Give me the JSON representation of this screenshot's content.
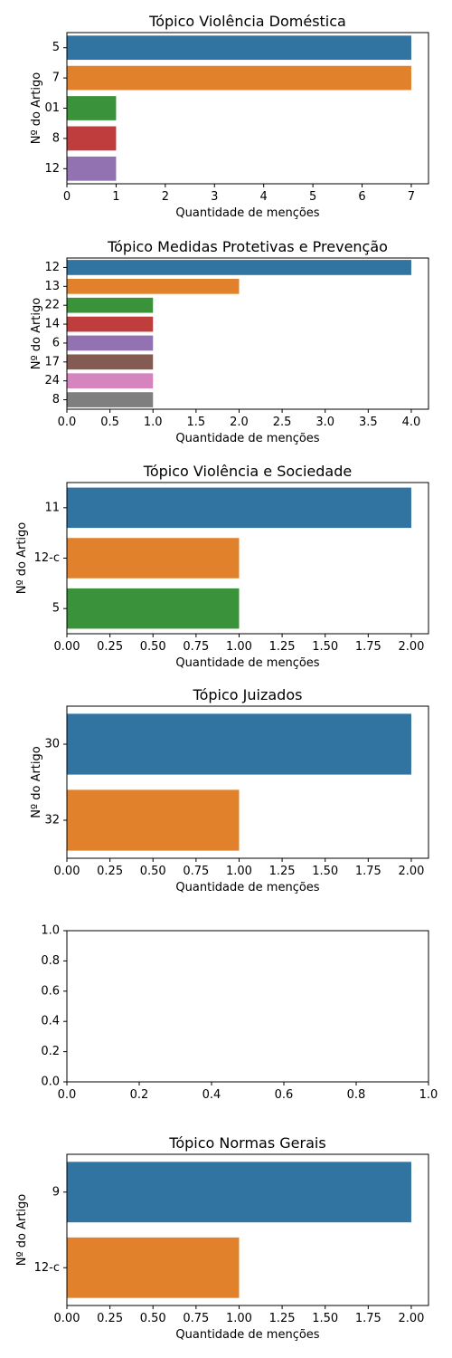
{
  "chart_data": [
    {
      "type": "bar",
      "orientation": "horizontal",
      "title": "Tópico Violência Doméstica",
      "xlabel": "Quantidade de menções",
      "ylabel": "Nº do Artigo",
      "categories": [
        "5",
        "7",
        "01",
        "8",
        "12"
      ],
      "values": [
        7,
        7,
        1,
        1,
        1
      ],
      "xlim": [
        0,
        7.35
      ],
      "xticks": [
        0,
        1,
        2,
        3,
        4,
        5,
        6,
        7
      ],
      "xtick_labels": [
        "0",
        "1",
        "2",
        "3",
        "4",
        "5",
        "6",
        "7"
      ]
    },
    {
      "type": "bar",
      "orientation": "horizontal",
      "title": "Tópico Medidas Protetivas e Prevenção",
      "xlabel": "Quantidade de menções",
      "ylabel": "Nº do Artigo",
      "categories": [
        "12",
        "13",
        "22",
        "14",
        "6",
        "17",
        "24",
        "8"
      ],
      "values": [
        4,
        2,
        1,
        1,
        1,
        1,
        1,
        1
      ],
      "xlim": [
        0,
        4.2
      ],
      "xticks": [
        0,
        0.5,
        1,
        1.5,
        2,
        2.5,
        3,
        3.5,
        4
      ],
      "xtick_labels": [
        "0.0",
        "0.5",
        "1.0",
        "1.5",
        "2.0",
        "2.5",
        "3.0",
        "3.5",
        "4.0"
      ]
    },
    {
      "type": "bar",
      "orientation": "horizontal",
      "title": "Tópico Violência e Sociedade",
      "xlabel": "Quantidade de menções",
      "ylabel": "Nº do Artigo",
      "categories": [
        "11",
        "12-c",
        "5"
      ],
      "values": [
        2,
        1,
        1
      ],
      "xlim": [
        0,
        2.1
      ],
      "xticks": [
        0,
        0.25,
        0.5,
        0.75,
        1,
        1.25,
        1.5,
        1.75,
        2
      ],
      "xtick_labels": [
        "0.00",
        "0.25",
        "0.50",
        "0.75",
        "1.00",
        "1.25",
        "1.50",
        "1.75",
        "2.00"
      ]
    },
    {
      "type": "bar",
      "orientation": "horizontal",
      "title": "Tópico Juizados",
      "xlabel": "Quantidade de menções",
      "ylabel": "Nº do Artigo",
      "categories": [
        "30",
        "32"
      ],
      "values": [
        2,
        1
      ],
      "xlim": [
        0,
        2.1
      ],
      "xticks": [
        0,
        0.25,
        0.5,
        0.75,
        1,
        1.25,
        1.5,
        1.75,
        2
      ],
      "xtick_labels": [
        "0.00",
        "0.25",
        "0.50",
        "0.75",
        "1.00",
        "1.25",
        "1.50",
        "1.75",
        "2.00"
      ]
    },
    {
      "type": "empty",
      "title": "",
      "xlabel": "",
      "ylabel": "",
      "categories": [],
      "values": [],
      "xlim": [
        0,
        1
      ],
      "ylim": [
        0,
        1
      ],
      "xticks": [
        0,
        0.2,
        0.4,
        0.6,
        0.8,
        1
      ],
      "xtick_labels": [
        "0.0",
        "0.2",
        "0.4",
        "0.6",
        "0.8",
        "1.0"
      ],
      "yticks": [
        0,
        0.2,
        0.4,
        0.6,
        0.8,
        1
      ],
      "ytick_labels": [
        "0.0",
        "0.2",
        "0.4",
        "0.6",
        "0.8",
        "1.0"
      ]
    },
    {
      "type": "bar",
      "orientation": "horizontal",
      "title": "Tópico Normas Gerais",
      "xlabel": "Quantidade de menções",
      "ylabel": "Nº do Artigo",
      "categories": [
        "9",
        "12-c"
      ],
      "values": [
        2,
        1
      ],
      "xlim": [
        0,
        2.1
      ],
      "xticks": [
        0,
        0.25,
        0.5,
        0.75,
        1,
        1.25,
        1.5,
        1.75,
        2
      ],
      "xtick_labels": [
        "0.00",
        "0.25",
        "0.50",
        "0.75",
        "1.00",
        "1.25",
        "1.50",
        "1.75",
        "2.00"
      ]
    }
  ],
  "palette": [
    "#3274a1",
    "#e1812c",
    "#3a923a",
    "#c03d3e",
    "#9372b2",
    "#845b53",
    "#d684bd",
    "#7f7f7f"
  ]
}
